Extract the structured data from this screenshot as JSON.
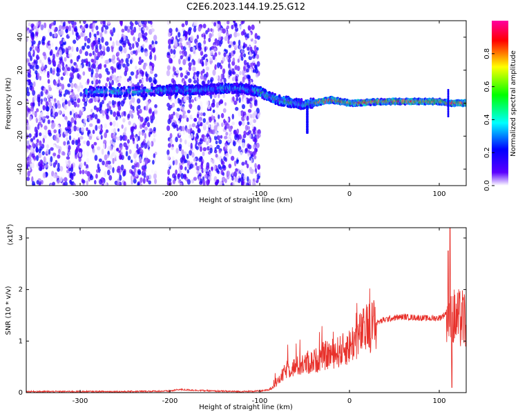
{
  "title": "C2E6.2023.144.19.25.G12",
  "chart_data": [
    {
      "type": "heatmap",
      "xlabel": "Height of straight line (km)",
      "ylabel": "Frequency (Hz)",
      "xlim": [
        -360,
        130
      ],
      "ylim": [
        -50,
        50
      ],
      "x_ticks": [
        -300,
        -200,
        -100,
        0,
        100
      ],
      "y_ticks": [
        -40,
        -20,
        0,
        20,
        40
      ],
      "grid": false,
      "colorbar": {
        "label": "Normalized spectral amplitude",
        "range": [
          0,
          1
        ],
        "ticks": [
          "0.0",
          "0.2",
          "0.4",
          "0.6",
          "0.8"
        ],
        "colormap": [
          "#ffffff",
          "#5b00ff",
          "#0000ff",
          "#00ffff",
          "#00ff00",
          "#ffff00",
          "#ff0000",
          "#ff00a0"
        ]
      },
      "ridge": [
        {
          "x": -290,
          "y": 7
        },
        {
          "x": -260,
          "y": 7
        },
        {
          "x": -230,
          "y": 7
        },
        {
          "x": -200,
          "y": 8
        },
        {
          "x": -170,
          "y": 8
        },
        {
          "x": -140,
          "y": 9
        },
        {
          "x": -120,
          "y": 9
        },
        {
          "x": -100,
          "y": 7
        },
        {
          "x": -90,
          "y": 4
        },
        {
          "x": -80,
          "y": 2
        },
        {
          "x": -70,
          "y": 1
        },
        {
          "x": -60,
          "y": 0
        },
        {
          "x": -50,
          "y": -1
        },
        {
          "x": -40,
          "y": 0
        },
        {
          "x": -30,
          "y": 1
        },
        {
          "x": -20,
          "y": 2
        },
        {
          "x": -10,
          "y": 1
        },
        {
          "x": 0,
          "y": 0
        },
        {
          "x": 20,
          "y": 0.5
        },
        {
          "x": 40,
          "y": 1
        },
        {
          "x": 60,
          "y": 1
        },
        {
          "x": 80,
          "y": 1
        },
        {
          "x": 100,
          "y": 1
        },
        {
          "x": 110,
          "y": 0
        },
        {
          "x": 130,
          "y": 0
        }
      ]
    },
    {
      "type": "line",
      "xlabel": "Height of straight line (km)",
      "ylabel": "SNR (10 * v/v)",
      "y_scale_label": "(x10",
      "y_scale_exponent": "4",
      "xlim": [
        -360,
        130
      ],
      "ylim": [
        0,
        3.2
      ],
      "x_ticks": [
        -300,
        -200,
        -100,
        0,
        100
      ],
      "y_ticks": [
        0,
        1,
        2,
        3
      ],
      "grid": false,
      "color": "#e8302a",
      "series": [
        {
          "x": [
            -360,
            -300,
            -250,
            -200,
            -190,
            -150,
            -120,
            -100,
            -90,
            -80,
            -70,
            -60,
            -50,
            -40,
            -30,
            -20,
            -10,
            0,
            10,
            20,
            30,
            40,
            50,
            60,
            70,
            80,
            90,
            100,
            105,
            110,
            113,
            115,
            120,
            130
          ],
          "y": [
            0.02,
            0.02,
            0.02,
            0.03,
            0.06,
            0.03,
            0.02,
            0.03,
            0.05,
            0.2,
            0.45,
            0.5,
            0.55,
            0.6,
            0.7,
            0.75,
            0.8,
            0.9,
            1.1,
            1.25,
            1.35,
            1.42,
            1.45,
            1.47,
            1.46,
            1.45,
            1.44,
            1.45,
            1.5,
            1.6,
            1.4,
            1.45,
            1.42,
            1.42
          ]
        }
      ]
    }
  ]
}
